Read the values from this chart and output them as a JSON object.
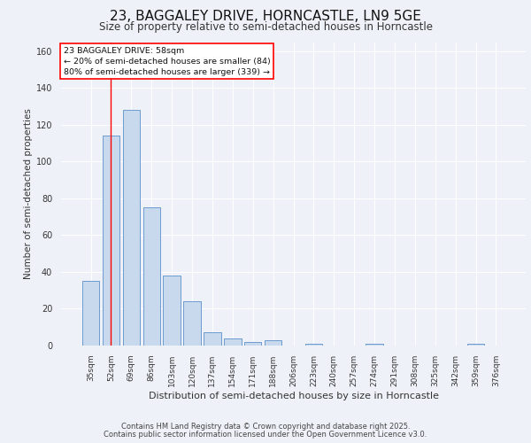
{
  "title1": "23, BAGGALEY DRIVE, HORNCASTLE, LN9 5GE",
  "title2": "Size of property relative to semi-detached houses in Horncastle",
  "xlabel": "Distribution of semi-detached houses by size in Horncastle",
  "ylabel": "Number of semi-detached properties",
  "categories": [
    "35sqm",
    "52sqm",
    "69sqm",
    "86sqm",
    "103sqm",
    "120sqm",
    "137sqm",
    "154sqm",
    "171sqm",
    "188sqm",
    "206sqm",
    "223sqm",
    "240sqm",
    "257sqm",
    "274sqm",
    "291sqm",
    "308sqm",
    "325sqm",
    "342sqm",
    "359sqm",
    "376sqm"
  ],
  "values": [
    35,
    114,
    128,
    75,
    38,
    24,
    7,
    4,
    2,
    3,
    0,
    1,
    0,
    0,
    1,
    0,
    0,
    0,
    0,
    1,
    0
  ],
  "bar_color": "#c9d9ed",
  "bar_edge_color": "#5b8fc9",
  "red_line_x": 1.0,
  "annotation_title": "23 BAGGALEY DRIVE: 58sqm",
  "annotation_line1": "← 20% of semi-detached houses are smaller (84)",
  "annotation_line2": "80% of semi-detached houses are larger (339) →",
  "footer1": "Contains HM Land Registry data © Crown copyright and database right 2025.",
  "footer2": "Contains public sector information licensed under the Open Government Licence v3.0.",
  "ylim": [
    0,
    165
  ],
  "yticks": [
    0,
    20,
    40,
    60,
    80,
    100,
    120,
    140,
    160
  ],
  "bg_color": "#eef2f8",
  "plot_bg_color": "#eef2f8",
  "title1_fontsize": 11,
  "title2_fontsize": 8.5,
  "xlabel_fontsize": 8,
  "ylabel_fontsize": 7.5,
  "tick_fontsize": 6.5,
  "footer_fontsize": 6
}
